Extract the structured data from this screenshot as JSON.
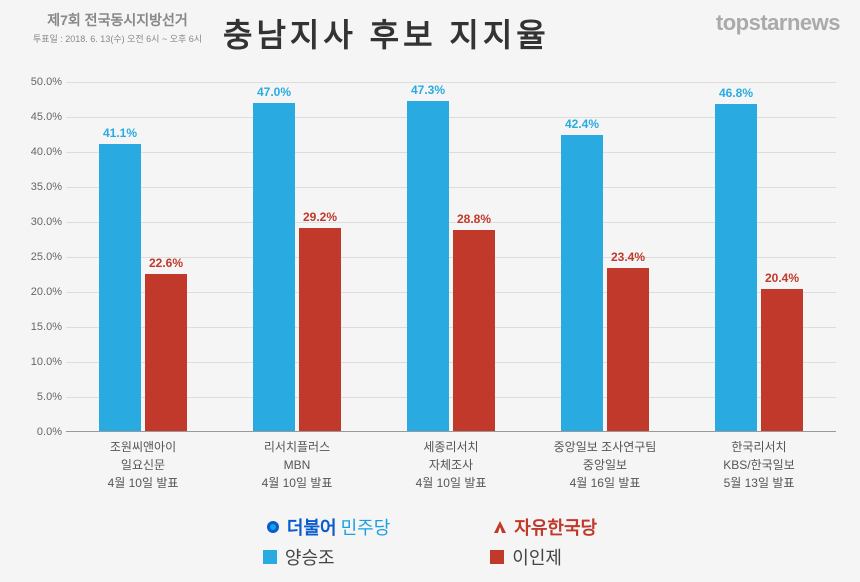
{
  "header": {
    "small_line1": "제7회 전국동시지방선거",
    "small_line2": "투표일 : 2018. 6. 13(수) 오전 6시 ~ 오후 6시",
    "title": "충남지사 후보 지지율",
    "logo": "topstarnews"
  },
  "chart": {
    "type": "bar",
    "y_max": 50,
    "y_tick_step": 5,
    "y_tick_suffix": "%",
    "grid_color": "#ddd",
    "baseline_color": "#999",
    "series": [
      {
        "key": "s1",
        "color": "#29abe2",
        "label_color": "#29abe2"
      },
      {
        "key": "s2",
        "color": "#c0392b",
        "label_color": "#c0392b"
      }
    ],
    "groups": [
      {
        "x1": "조원씨앤아이",
        "x2": "일요신문",
        "x3": "4월 10일 발표",
        "s1": 41.1,
        "s2": 22.6
      },
      {
        "x1": "리서치플러스",
        "x2": "MBN",
        "x3": "4월 10일 발표",
        "s1": 47.0,
        "s2": 29.2
      },
      {
        "x1": "세종리서치",
        "x2": "자체조사",
        "x3": "4월 10일 발표",
        "s1": 47.3,
        "s2": 28.8
      },
      {
        "x1": "중앙일보 조사연구팀",
        "x2": "중앙일보",
        "x3": "4월 16일 발표",
        "s1": 42.4,
        "s2": 23.4
      },
      {
        "x1": "한국리서치",
        "x2": "KBS/한국일보",
        "x3": "5월 13일 발표",
        "s1": 46.8,
        "s2": 20.4
      }
    ]
  },
  "legend": {
    "party1_a": "더불어",
    "party1_b": "민주당",
    "cand1": "양승조",
    "party2_a": "자유한국당",
    "cand2": "이인제",
    "swatch1": "#29abe2",
    "swatch2": "#c0392b"
  }
}
